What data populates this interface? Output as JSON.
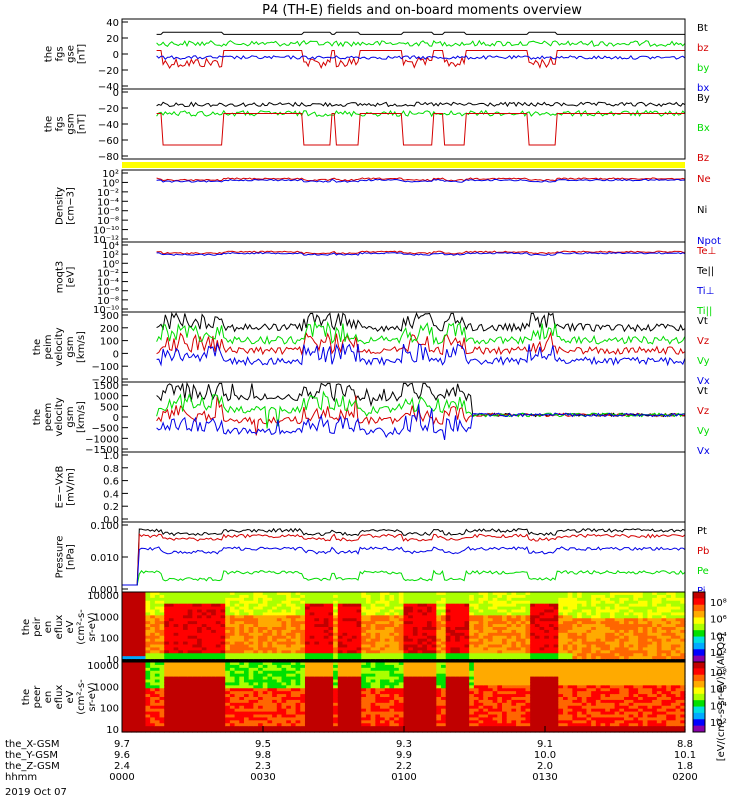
{
  "title": "P4 (TH-E) fields and on-board moments overview",
  "colors": {
    "black": "#000000",
    "red": "#d40000",
    "green": "#00dc00",
    "blue": "#0000e6",
    "yellow": "#ffff00"
  },
  "chart_data": [
    {
      "type": "line",
      "title": "",
      "ylabel": [
        "the",
        "fgs",
        "gse",
        "[nT]"
      ],
      "ylim": [
        -40,
        40
      ],
      "yticks": [
        "40",
        "20",
        "0",
        "−20",
        "−40"
      ],
      "series": [
        {
          "name": "Bt",
          "color": "black"
        },
        {
          "name": "bz",
          "color": "red"
        },
        {
          "name": "by",
          "color": "green"
        },
        {
          "name": "bx",
          "color": "blue"
        }
      ]
    },
    {
      "type": "line",
      "ylabel": [
        "the",
        "fgs",
        "gsm",
        "[nT]"
      ],
      "ylim": [
        -100,
        10
      ],
      "yticks": [
        "0",
        "−20",
        "−40",
        "−60",
        "−80"
      ],
      "series": [
        {
          "name": "By",
          "color": "black"
        },
        {
          "name": "Bx",
          "color": "green"
        },
        {
          "name": "Bz",
          "color": "red"
        }
      ]
    },
    {
      "type": "line",
      "ylabel": [
        "Density",
        "[cm−3]"
      ],
      "ylim": [
        -12,
        3
      ],
      "log": true,
      "yticks": [
        "10²",
        "10⁰",
        "10⁻²",
        "10⁻⁴",
        "10⁻⁶",
        "10⁻⁸",
        "10⁻¹⁰",
        "10⁻¹²"
      ],
      "series": [
        {
          "name": "Ne",
          "color": "red"
        },
        {
          "name": "Ni",
          "color": "black"
        },
        {
          "name": "Npot",
          "color": "blue"
        }
      ]
    },
    {
      "type": "line",
      "ylabel": [
        "moqt3",
        "[eV]"
      ],
      "ylim": [
        -10,
        5
      ],
      "log": true,
      "yticks": [
        "10⁴",
        "10²",
        "10⁰",
        "10⁻²",
        "10⁻⁴",
        "10⁻⁶",
        "10⁻⁸",
        "10⁻¹⁰"
      ],
      "series": [
        {
          "name": "Te⊥",
          "color": "red"
        },
        {
          "name": "Te||",
          "color": "black"
        },
        {
          "name": "Ti⊥",
          "color": "blue"
        },
        {
          "name": "Ti||",
          "color": "green"
        }
      ]
    },
    {
      "type": "line",
      "ylabel": [
        "the",
        "peim",
        "velocity",
        "gsm",
        "[km/s]"
      ],
      "ylim": [
        -200,
        300
      ],
      "yticks": [
        "300",
        "200",
        "100",
        "0",
        "−100",
        "−200"
      ],
      "series": [
        {
          "name": "Vt",
          "color": "black"
        },
        {
          "name": "Vz",
          "color": "red"
        },
        {
          "name": "Vy",
          "color": "green"
        },
        {
          "name": "Vx",
          "color": "blue"
        }
      ]
    },
    {
      "type": "line",
      "ylabel": [
        "the",
        "peem",
        "velocity",
        "gsm",
        "[km/s]"
      ],
      "ylim": [
        -1500,
        1500
      ],
      "yticks": [
        "1500",
        "1000",
        "500",
        "0",
        "−500",
        "−1000",
        "−1500"
      ],
      "series": [
        {
          "name": "Vt",
          "color": "black"
        },
        {
          "name": "Vz",
          "color": "red"
        },
        {
          "name": "Vy",
          "color": "green"
        },
        {
          "name": "Vx",
          "color": "blue"
        }
      ]
    },
    {
      "type": "line",
      "ylabel": [
        "E=−VxB",
        "[mV/m]"
      ],
      "ylim": [
        0,
        1
      ],
      "yticks": [
        "1.0",
        "0.8",
        "0.6",
        "0.4",
        "0.2",
        "0.0"
      ],
      "series": [
        {
          "name": "Ez",
          "color": "red"
        },
        {
          "name": "Ey",
          "color": "green"
        },
        {
          "name": "Ex",
          "color": "blue"
        }
      ]
    },
    {
      "type": "line",
      "ylabel": [
        "Pressure",
        "[nPa]"
      ],
      "ylim": [
        -3,
        0
      ],
      "log": true,
      "yticks": [
        "0.100",
        "0.010",
        "0.001"
      ],
      "series": [
        {
          "name": "Pt",
          "color": "black"
        },
        {
          "name": "Pb",
          "color": "red"
        },
        {
          "name": "Pe",
          "color": "green"
        },
        {
          "name": "Pi",
          "color": "blue"
        }
      ]
    },
    {
      "type": "heatmap",
      "ylabel": [
        "the",
        "peir",
        "en",
        "eflux",
        "eV",
        "(cm²-s-",
        "sr-eV)"
      ],
      "yticks": [
        "10000",
        "1000",
        "100",
        "10"
      ],
      "colorbar": [
        "10⁸",
        "10⁶",
        "10⁴",
        "10²"
      ]
    },
    {
      "type": "heatmap",
      "ylabel": [
        "the",
        "peer",
        "en",
        "eflux",
        "eV",
        "(cm²-s-",
        "sr-eV)"
      ],
      "yticks": [
        "10000",
        "1000",
        "100",
        "10"
      ],
      "colorbar": [
        "10⁸",
        "10⁶",
        "10⁴",
        "10²"
      ]
    }
  ],
  "colorbar_label": "[eV/(cm²-s-sr-eV)] (All Qs)",
  "xaxis": {
    "rows": [
      {
        "label": "the_X-GSM",
        "values": [
          "9.7",
          "9.5",
          "9.3",
          "9.1",
          "8.8"
        ]
      },
      {
        "label": "the_Y-GSM",
        "values": [
          "9.6",
          "9.8",
          "9.9",
          "10.0",
          "10.1"
        ]
      },
      {
        "label": "the_Z-GSM",
        "values": [
          "2.4",
          "2.3",
          "2.2",
          "2.0",
          "1.8"
        ]
      },
      {
        "label": "hhmm",
        "values": [
          "0000",
          "0030",
          "0100",
          "0130",
          "0200"
        ]
      }
    ],
    "date": "2019 Oct 07"
  }
}
